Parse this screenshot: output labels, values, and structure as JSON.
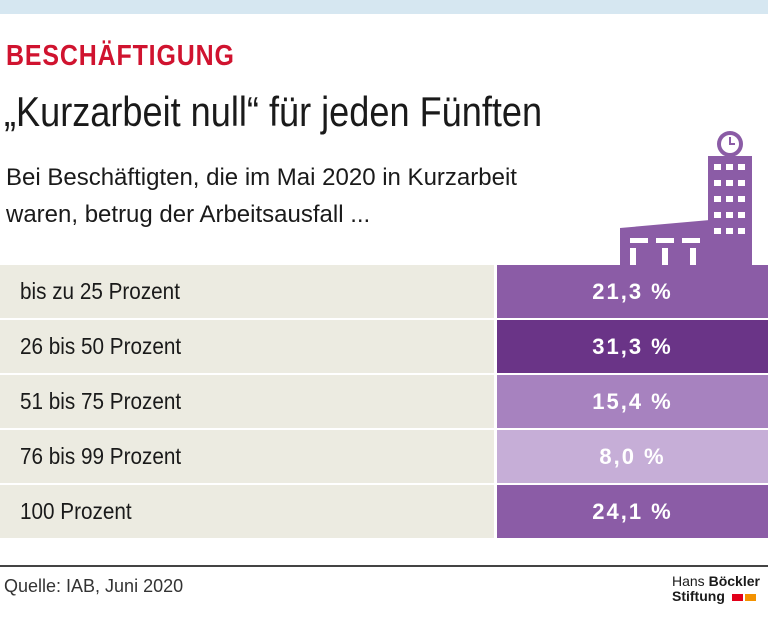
{
  "header": {
    "category": "BESCHÄFTIGUNG",
    "title": "„Kurzarbeit null“ für jeden Fünften",
    "subtitle": [
      "Bei Beschäftigten, die im Mai 2020 in Kurzarbeit",
      "waren, betrug der Arbeitsausfall ..."
    ]
  },
  "table": {
    "rows": [
      {
        "label": "bis zu 25 Prozent",
        "value": "21,3 %",
        "color": "#8b5ca6"
      },
      {
        "label": "26 bis 50 Prozent",
        "value": "31,3 %",
        "color": "#6a3487"
      },
      {
        "label": "51 bis 75 Prozent",
        "value": "15,4 %",
        "color": "#a782bf"
      },
      {
        "label": "76 bis 99 Prozent",
        "value": "8,0 %",
        "color": "#c6aed7"
      },
      {
        "label": "100 Prozent",
        "value": "24,1 %",
        "color": "#8b5ca6"
      }
    ]
  },
  "footer": {
    "source": "Quelle: IAB, Juni 2020",
    "logo": [
      "Hans",
      "Böckler",
      "Stiftung"
    ]
  }
}
